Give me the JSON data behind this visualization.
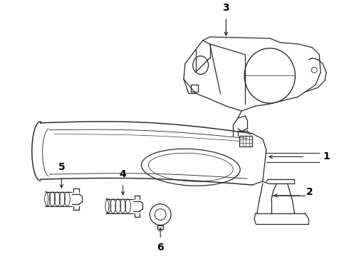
{
  "background_color": "#ffffff",
  "line_color": "#2a2a2a",
  "label_color": "#000000",
  "label_fontsize": 10,
  "lw": 0.9,
  "fig_w": 4.9,
  "fig_h": 3.6,
  "dpi": 100
}
